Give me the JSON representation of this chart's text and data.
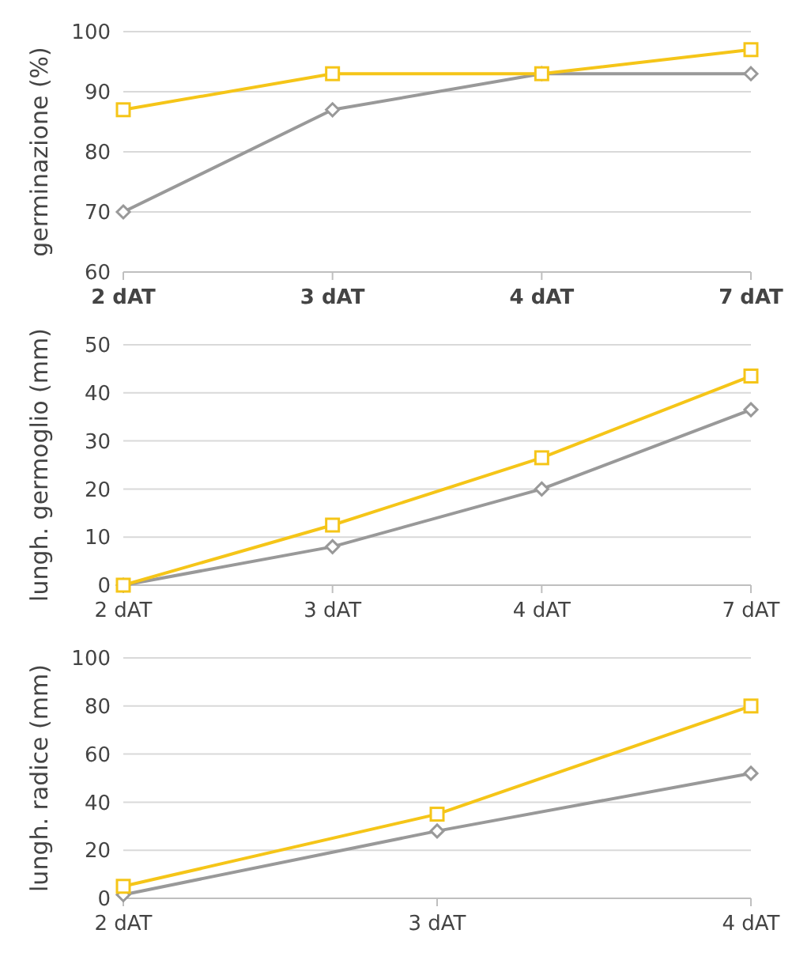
{
  "chart_data": [
    {
      "type": "line",
      "ylabel": "germinazione (%)",
      "categories": [
        "2 dAT",
        "3 dAT",
        "4 dAT",
        "7 dAT"
      ],
      "ylim": [
        60,
        100
      ],
      "yticks": [
        60,
        70,
        80,
        90,
        100
      ],
      "grid": "y",
      "series": [
        {
          "color": "#999999",
          "marker": "diamond",
          "values": [
            70,
            87,
            93,
            93
          ]
        },
        {
          "color": "#f5c518",
          "marker": "square",
          "values": [
            87,
            93,
            93,
            97
          ]
        }
      ]
    },
    {
      "type": "line",
      "ylabel": "lungh. germoglio (mm)",
      "categories": [
        "2 dAT",
        "3 dAT",
        "4 dAT",
        "7 dAT"
      ],
      "ylim": [
        0,
        50
      ],
      "yticks": [
        0,
        10,
        20,
        30,
        40,
        50
      ],
      "grid": "y",
      "series": [
        {
          "color": "#999999",
          "marker": "diamond",
          "values": [
            0,
            8,
            20,
            36.5
          ]
        },
        {
          "color": "#f5c518",
          "marker": "square",
          "values": [
            0,
            12.5,
            26.5,
            43.5
          ]
        }
      ]
    },
    {
      "type": "line",
      "ylabel": "lungh. radice (mm)",
      "categories": [
        "2 dAT",
        "3 dAT",
        "4 dAT"
      ],
      "ylim": [
        0,
        100
      ],
      "yticks": [
        0,
        20,
        40,
        60,
        80,
        100
      ],
      "grid": "y",
      "series": [
        {
          "color": "#999999",
          "marker": "diamond",
          "values": [
            1.5,
            28,
            52
          ]
        },
        {
          "color": "#f5c518",
          "marker": "square",
          "values": [
            5,
            35,
            80
          ]
        }
      ]
    }
  ]
}
